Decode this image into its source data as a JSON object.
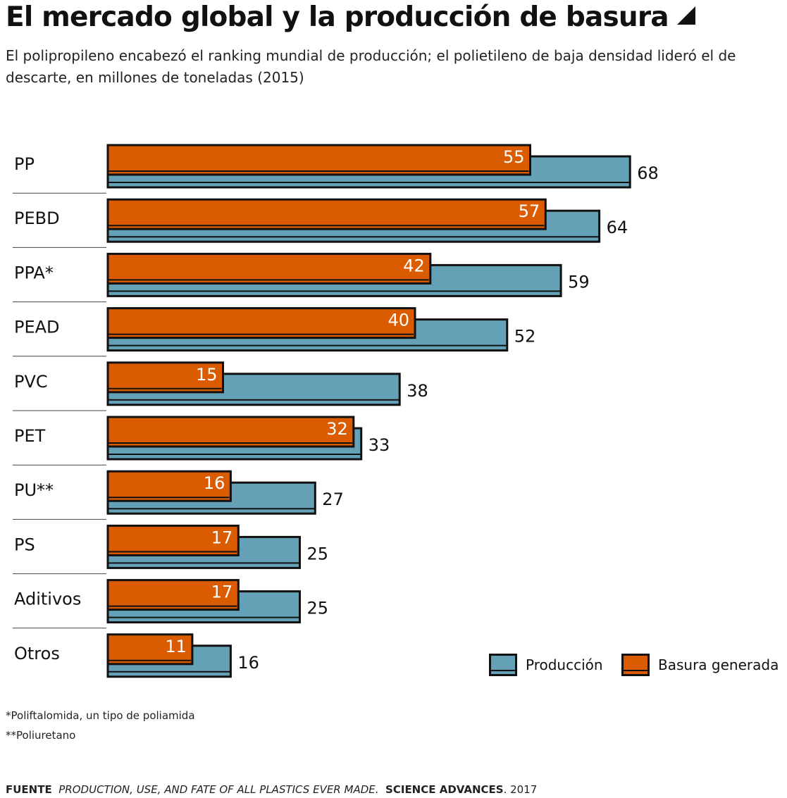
{
  "header": {
    "title": "El mercado global y la producción de basura",
    "subtitle": "El polipropileno encabezó el ranking mundial de producción; el polietileno de baja densidad lideró el de descarte, en millones de toneladas (2015)"
  },
  "chart_data": {
    "type": "bar",
    "orientation": "horizontal",
    "categories": [
      "PP",
      "PEBD",
      "PPA*",
      "PEAD",
      "PVC",
      "PET",
      "PU**",
      "PS",
      "Aditivos",
      "Otros"
    ],
    "series": [
      {
        "name": "Producción",
        "values": [
          68,
          64,
          59,
          52,
          38,
          33,
          27,
          25,
          25,
          16
        ],
        "color": "#64a0b6"
      },
      {
        "name": "Basura generada",
        "values": [
          55,
          57,
          42,
          40,
          15,
          32,
          16,
          17,
          17,
          11
        ],
        "color": "#db5c00"
      }
    ],
    "grid": false,
    "legend_position": "bottom-right"
  },
  "footnotes": {
    "note1": "*Poliftalomida, un tipo de poliamida",
    "note2": "**Poliuretano"
  },
  "source": {
    "label": "FUENTE",
    "work": "PRODUCTION, USE, AND FATE OF ALL PLASTICS EVER MADE.",
    "journal": "SCIENCE ADVANCES",
    "year": ". 2017"
  },
  "colors": {
    "production": "#64a0b6",
    "waste": "#db5c00",
    "outline": "#111111"
  }
}
